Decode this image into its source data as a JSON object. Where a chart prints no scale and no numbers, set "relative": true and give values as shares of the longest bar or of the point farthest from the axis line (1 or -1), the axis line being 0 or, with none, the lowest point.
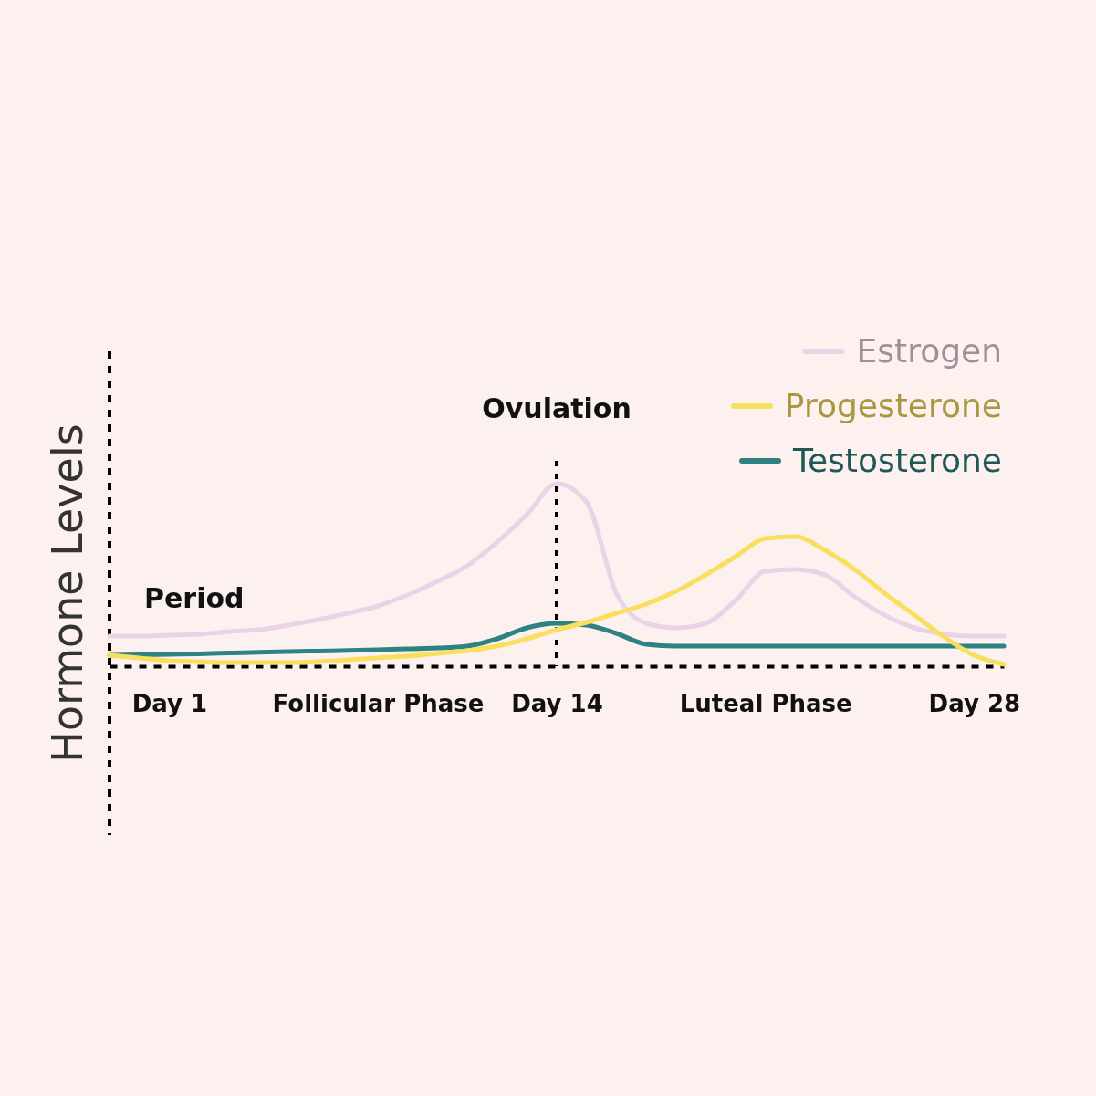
{
  "chart_data": {
    "type": "line",
    "relative": true,
    "ylabel": "Hormone Levels",
    "categories": [
      null,
      null,
      "Day 1",
      null,
      null,
      null,
      null,
      null,
      null,
      "Follicular Phase",
      null,
      null,
      null,
      null,
      null,
      "Day 14",
      null,
      null,
      null,
      null,
      null,
      null,
      "Luteal Phase",
      null,
      null,
      null,
      null,
      null,
      null,
      "Day 28",
      null
    ],
    "legend": "top right",
    "ref_lines": [
      {
        "axis": "x",
        "value": "Day 14",
        "label": "Ovulation",
        "color": "#000000",
        "line_style": "dotted"
      }
    ],
    "annotations": [
      "Period"
    ],
    "series": [
      {
        "name": "Estrogen",
        "color": "#ead3e6",
        "values": [
          0.165,
          0.165,
          0.17,
          0.175,
          0.19,
          0.2,
          0.225,
          0.255,
          0.29,
          0.33,
          0.39,
          0.465,
          0.55,
          0.68,
          0.83,
          1,
          0.9,
          0.4,
          0.235,
          0.21,
          0.235,
          0.36,
          0.52,
          0.53,
          0.5,
          0.38,
          0.28,
          0.21,
          0.175,
          0.165,
          0.165
        ]
      },
      {
        "name": "Progesterone",
        "color": "#fadf5e",
        "values": [
          0.06,
          0.045,
          0.03,
          0.025,
          0.02,
          0.02,
          0.02,
          0.025,
          0.035,
          0.045,
          0.055,
          0.07,
          0.085,
          0.11,
          0.15,
          0.2,
          0.24,
          0.29,
          0.34,
          0.41,
          0.5,
          0.6,
          0.7,
          0.71,
          0.635,
          0.53,
          0.4,
          0.28,
          0.16,
          0.06,
          0.01
        ]
      },
      {
        "name": "Testosterone",
        "color": "#2e8282",
        "values": [
          0.06,
          0.062,
          0.065,
          0.068,
          0.072,
          0.076,
          0.08,
          0.083,
          0.086,
          0.09,
          0.095,
          0.1,
          0.11,
          0.15,
          0.21,
          0.235,
          0.225,
          0.18,
          0.12,
          0.11,
          0.11,
          0.11,
          0.11,
          0.11,
          0.11,
          0.11,
          0.11,
          0.11,
          0.11,
          0.11,
          0.11
        ]
      }
    ]
  }
}
